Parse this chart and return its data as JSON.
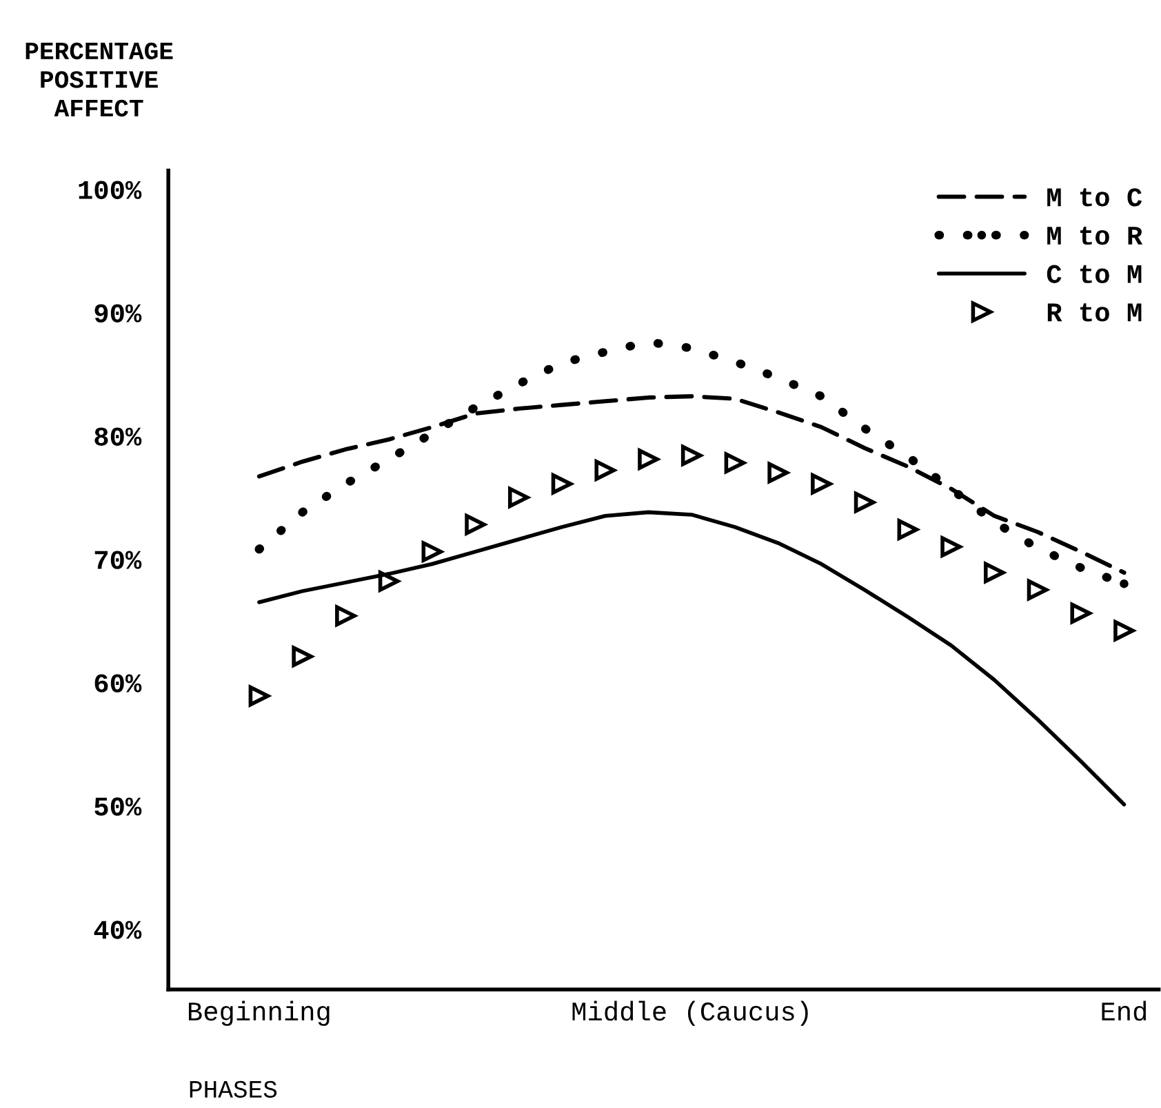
{
  "chart_data": {
    "type": "line",
    "ylabel": "PERCENTAGE\nPOSITIVE\nAFFECT",
    "xlabel": "PHASES",
    "categories": [
      "Beginning",
      null,
      null,
      null,
      null,
      null,
      null,
      null,
      null,
      null,
      "Middle (Caucus)",
      null,
      null,
      null,
      null,
      null,
      null,
      null,
      null,
      null,
      "End"
    ],
    "ylim": [
      35.1,
      101.5
    ],
    "yticks": [
      {
        "value": 40,
        "label": "40%"
      },
      {
        "value": 50,
        "label": "50%"
      },
      {
        "value": 60,
        "label": "60%"
      },
      {
        "value": 70,
        "label": "70%"
      },
      {
        "value": 80,
        "label": "80%"
      },
      {
        "value": 90,
        "label": "90%"
      },
      {
        "value": 100,
        "label": "100%"
      }
    ],
    "grid": false,
    "legend": "top right",
    "series": [
      {
        "name": "M to C",
        "color": "#000000",
        "line_style": "dashed",
        "marker": "none",
        "values": [
          76.7,
          77.9,
          78.9,
          79.7,
          80.7,
          81.8,
          82.2,
          82.5,
          82.8,
          83.1,
          83.2,
          83.0,
          81.9,
          80.7,
          79.0,
          77.5,
          75.7,
          73.5,
          72.2,
          70.6,
          68.9
        ]
      },
      {
        "name": "M to R",
        "color": "#000000",
        "line_style": "dotted",
        "marker": "none",
        "values": [
          70.8,
          73.8,
          76.1,
          78.1,
          80.2,
          82.3,
          84.2,
          85.9,
          86.8,
          87.6,
          87.1,
          86.0,
          84.7,
          83.2,
          80.6,
          78.3,
          75.7,
          73.0,
          70.9,
          69.3,
          68.0
        ]
      },
      {
        "name": "C to M",
        "color": "#000000",
        "line_style": "solid",
        "marker": "none",
        "values": [
          66.5,
          67.4,
          68.1,
          68.8,
          69.6,
          70.6,
          71.6,
          72.6,
          73.5,
          73.8,
          73.6,
          72.6,
          71.3,
          69.6,
          67.5,
          65.3,
          63.0,
          60.2,
          57.0,
          53.6,
          50.1
        ]
      },
      {
        "name": "R to M",
        "type": "scatter",
        "color": "#000000",
        "marker": "triangle",
        "values": [
          58.9,
          62.1,
          65.4,
          68.2,
          70.6,
          72.8,
          75.0,
          76.1,
          77.2,
          78.1,
          78.4,
          77.8,
          77.0,
          76.1,
          74.6,
          72.4,
          71.0,
          68.9,
          67.5,
          65.6,
          64.2
        ]
      }
    ]
  }
}
